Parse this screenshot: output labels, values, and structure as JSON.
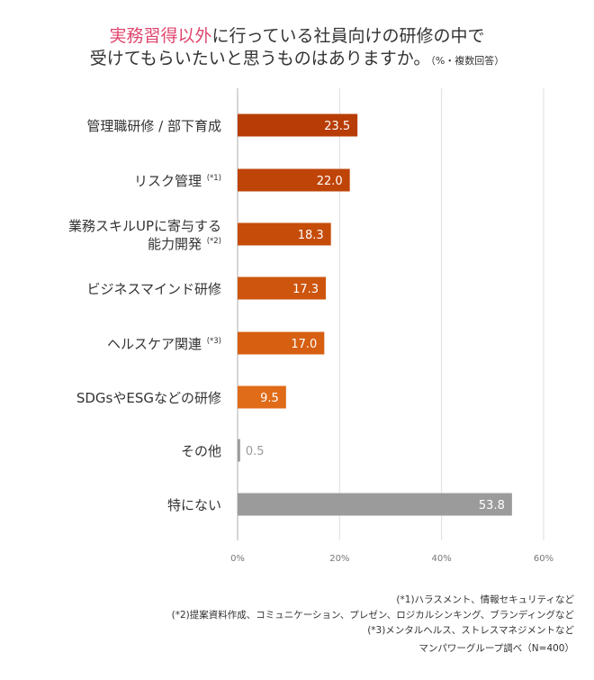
{
  "title": {
    "highlight": "実務習得以外",
    "line1_rest": "に行っている社員向けの研修の中で",
    "line2": "受けてもらいたいと思うものはありますか。",
    "note": "（%・複数回答）"
  },
  "chart_data": {
    "type": "bar",
    "orientation": "horizontal",
    "categories": [
      {
        "label": [
          "管理職研修 / 部下育成"
        ],
        "sup": ""
      },
      {
        "label": [
          "リスク管理"
        ],
        "sup": "(*1)"
      },
      {
        "label": [
          "業務スキルUPに寄与する",
          "能力開発"
        ],
        "sup": "(*2)"
      },
      {
        "label": [
          "ビジネスマインド研修"
        ],
        "sup": ""
      },
      {
        "label": [
          "ヘルスケア関連"
        ],
        "sup": "(*3)"
      },
      {
        "label": [
          "SDGsやESGなどの研修"
        ],
        "sup": ""
      },
      {
        "label": [
          "その他"
        ],
        "sup": ""
      },
      {
        "label": [
          "特にない"
        ],
        "sup": ""
      }
    ],
    "values": [
      23.5,
      22.0,
      18.3,
      17.3,
      17.0,
      9.5,
      0.5,
      53.8
    ],
    "value_labels": [
      "23.5",
      "22.0",
      "18.3",
      "17.3",
      "17.0",
      "9.5",
      "0.5",
      "53.8"
    ],
    "colors": [
      "#b83c05",
      "#bf4407",
      "#c64c0a",
      "#cd550d",
      "#d75f12",
      "#e06b18",
      "#9b9b9b",
      "#9b9b9b"
    ],
    "xlim": [
      0,
      60
    ],
    "xticks": [
      0,
      20,
      40,
      60
    ],
    "xtick_labels": [
      "0%",
      "20%",
      "40%",
      "60%"
    ],
    "grid": true
  },
  "footnotes": [
    "(*1)ハラスメント、情報セキュリティなど",
    "(*2)提案資料作成、コミュニケーション、プレゼン、ロジカルシンキング、ブランディングなど",
    "(*3)メンタルヘルス、ストレスマネジメントなど"
  ],
  "source": "マンパワーグループ調べ（N=400）"
}
